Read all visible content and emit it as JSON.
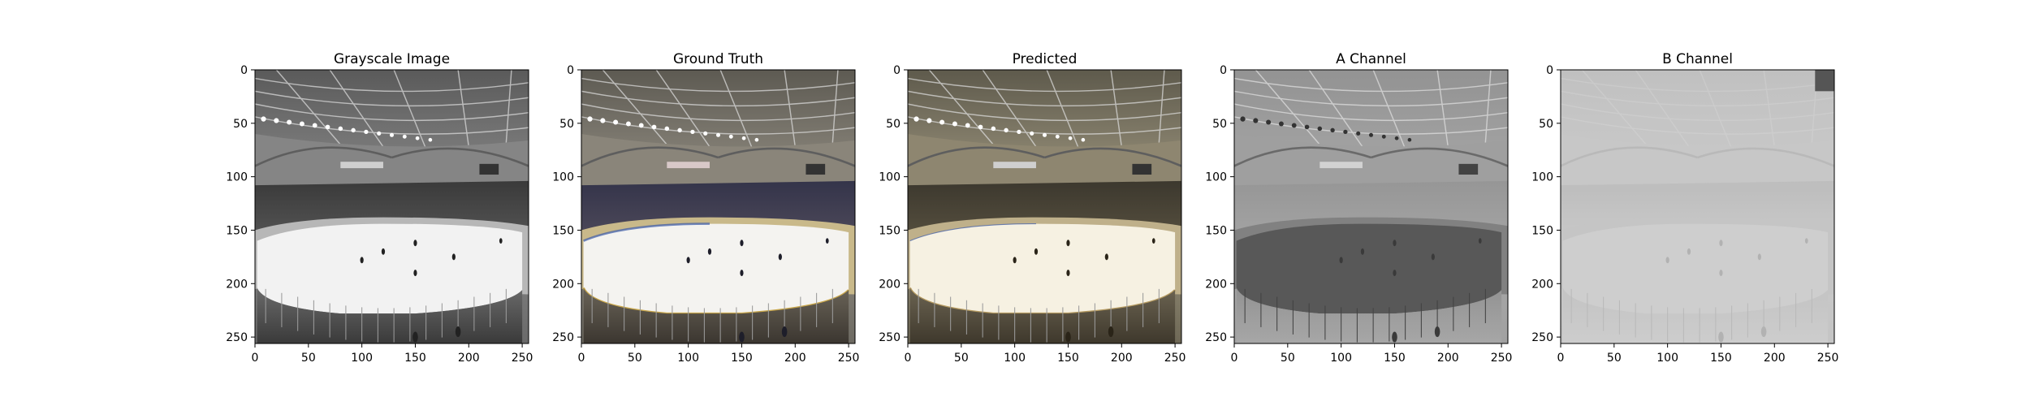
{
  "panels": [
    {
      "title": "Grayscale Image",
      "kind": "gray"
    },
    {
      "title": "Ground Truth",
      "kind": "truth"
    },
    {
      "title": "Predicted",
      "kind": "pred"
    },
    {
      "title": "A Channel",
      "kind": "a"
    },
    {
      "title": "B Channel",
      "kind": "b"
    }
  ],
  "axes": {
    "x_ticks": [
      "0",
      "50",
      "100",
      "150",
      "200",
      "250"
    ],
    "y_ticks": [
      "0",
      "50",
      "100",
      "150",
      "200",
      "250"
    ],
    "range": [
      0,
      256
    ]
  }
}
